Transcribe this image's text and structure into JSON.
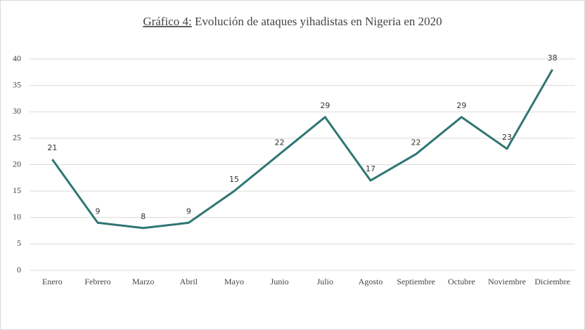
{
  "chart_data": {
    "type": "line",
    "title_prefix": "Gráfico 4:",
    "title": "Evolución de ataques yihadistas en Nigeria en 2020",
    "categories": [
      "Enero",
      "Febrero",
      "Marzo",
      "Abril",
      "Mayo",
      "Junio",
      "Julio",
      "Agosto",
      "Septiembre",
      "Octubre",
      "Noviembre",
      "Diciembre"
    ],
    "series": [
      {
        "color": "#2f7673",
        "values": [
          21,
          9,
          8,
          9,
          15,
          22,
          29,
          17,
          22,
          29,
          23,
          38
        ]
      }
    ],
    "ylim": [
      0,
      40
    ],
    "yticks": [
      0,
      5,
      10,
      15,
      20,
      25,
      30,
      35,
      40
    ],
    "grid": true
  }
}
